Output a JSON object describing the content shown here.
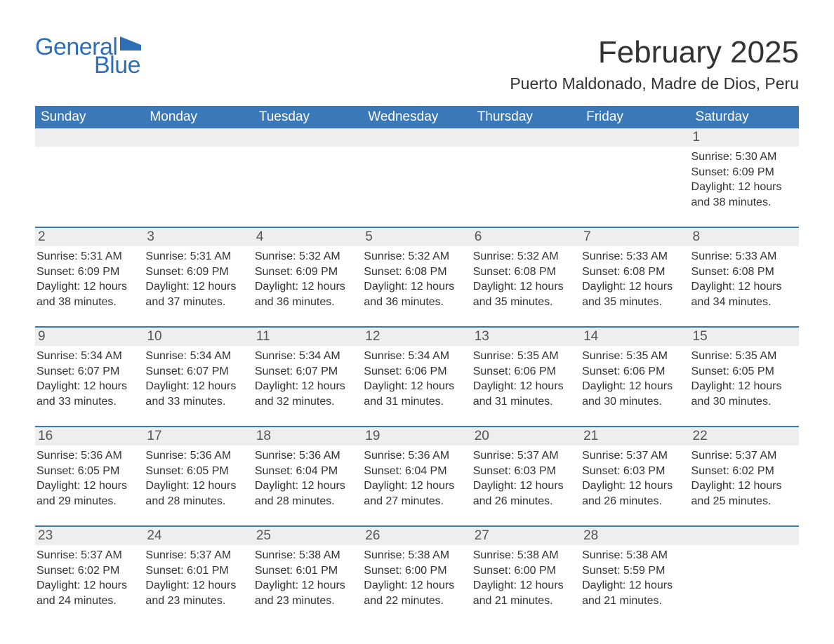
{
  "brand": {
    "word1": "General",
    "word2": "Blue",
    "color": "#2e6eb5"
  },
  "title": "February 2025",
  "location": "Puerto Maldonado, Madre de Dios, Peru",
  "colors": {
    "header_bg": "#3b78b8",
    "header_text": "#ffffff",
    "strip_bg": "#eeeeee",
    "divider": "#3b78b8",
    "body_text": "#333333",
    "page_bg": "#ffffff"
  },
  "days_of_week": [
    "Sunday",
    "Monday",
    "Tuesday",
    "Wednesday",
    "Thursday",
    "Friday",
    "Saturday"
  ],
  "labels": {
    "sunrise": "Sunrise: ",
    "sunset": "Sunset: ",
    "daylight": "Daylight: "
  },
  "weeks": [
    [
      null,
      null,
      null,
      null,
      null,
      null,
      {
        "n": "1",
        "sunrise": "5:30 AM",
        "sunset": "6:09 PM",
        "daylight": "12 hours and 38 minutes."
      }
    ],
    [
      {
        "n": "2",
        "sunrise": "5:31 AM",
        "sunset": "6:09 PM",
        "daylight": "12 hours and 38 minutes."
      },
      {
        "n": "3",
        "sunrise": "5:31 AM",
        "sunset": "6:09 PM",
        "daylight": "12 hours and 37 minutes."
      },
      {
        "n": "4",
        "sunrise": "5:32 AM",
        "sunset": "6:09 PM",
        "daylight": "12 hours and 36 minutes."
      },
      {
        "n": "5",
        "sunrise": "5:32 AM",
        "sunset": "6:08 PM",
        "daylight": "12 hours and 36 minutes."
      },
      {
        "n": "6",
        "sunrise": "5:32 AM",
        "sunset": "6:08 PM",
        "daylight": "12 hours and 35 minutes."
      },
      {
        "n": "7",
        "sunrise": "5:33 AM",
        "sunset": "6:08 PM",
        "daylight": "12 hours and 35 minutes."
      },
      {
        "n": "8",
        "sunrise": "5:33 AM",
        "sunset": "6:08 PM",
        "daylight": "12 hours and 34 minutes."
      }
    ],
    [
      {
        "n": "9",
        "sunrise": "5:34 AM",
        "sunset": "6:07 PM",
        "daylight": "12 hours and 33 minutes."
      },
      {
        "n": "10",
        "sunrise": "5:34 AM",
        "sunset": "6:07 PM",
        "daylight": "12 hours and 33 minutes."
      },
      {
        "n": "11",
        "sunrise": "5:34 AM",
        "sunset": "6:07 PM",
        "daylight": "12 hours and 32 minutes."
      },
      {
        "n": "12",
        "sunrise": "5:34 AM",
        "sunset": "6:06 PM",
        "daylight": "12 hours and 31 minutes."
      },
      {
        "n": "13",
        "sunrise": "5:35 AM",
        "sunset": "6:06 PM",
        "daylight": "12 hours and 31 minutes."
      },
      {
        "n": "14",
        "sunrise": "5:35 AM",
        "sunset": "6:06 PM",
        "daylight": "12 hours and 30 minutes."
      },
      {
        "n": "15",
        "sunrise": "5:35 AM",
        "sunset": "6:05 PM",
        "daylight": "12 hours and 30 minutes."
      }
    ],
    [
      {
        "n": "16",
        "sunrise": "5:36 AM",
        "sunset": "6:05 PM",
        "daylight": "12 hours and 29 minutes."
      },
      {
        "n": "17",
        "sunrise": "5:36 AM",
        "sunset": "6:05 PM",
        "daylight": "12 hours and 28 minutes."
      },
      {
        "n": "18",
        "sunrise": "5:36 AM",
        "sunset": "6:04 PM",
        "daylight": "12 hours and 28 minutes."
      },
      {
        "n": "19",
        "sunrise": "5:36 AM",
        "sunset": "6:04 PM",
        "daylight": "12 hours and 27 minutes."
      },
      {
        "n": "20",
        "sunrise": "5:37 AM",
        "sunset": "6:03 PM",
        "daylight": "12 hours and 26 minutes."
      },
      {
        "n": "21",
        "sunrise": "5:37 AM",
        "sunset": "6:03 PM",
        "daylight": "12 hours and 26 minutes."
      },
      {
        "n": "22",
        "sunrise": "5:37 AM",
        "sunset": "6:02 PM",
        "daylight": "12 hours and 25 minutes."
      }
    ],
    [
      {
        "n": "23",
        "sunrise": "5:37 AM",
        "sunset": "6:02 PM",
        "daylight": "12 hours and 24 minutes."
      },
      {
        "n": "24",
        "sunrise": "5:37 AM",
        "sunset": "6:01 PM",
        "daylight": "12 hours and 23 minutes."
      },
      {
        "n": "25",
        "sunrise": "5:38 AM",
        "sunset": "6:01 PM",
        "daylight": "12 hours and 23 minutes."
      },
      {
        "n": "26",
        "sunrise": "5:38 AM",
        "sunset": "6:00 PM",
        "daylight": "12 hours and 22 minutes."
      },
      {
        "n": "27",
        "sunrise": "5:38 AM",
        "sunset": "6:00 PM",
        "daylight": "12 hours and 21 minutes."
      },
      {
        "n": "28",
        "sunrise": "5:38 AM",
        "sunset": "5:59 PM",
        "daylight": "12 hours and 21 minutes."
      },
      null
    ]
  ]
}
